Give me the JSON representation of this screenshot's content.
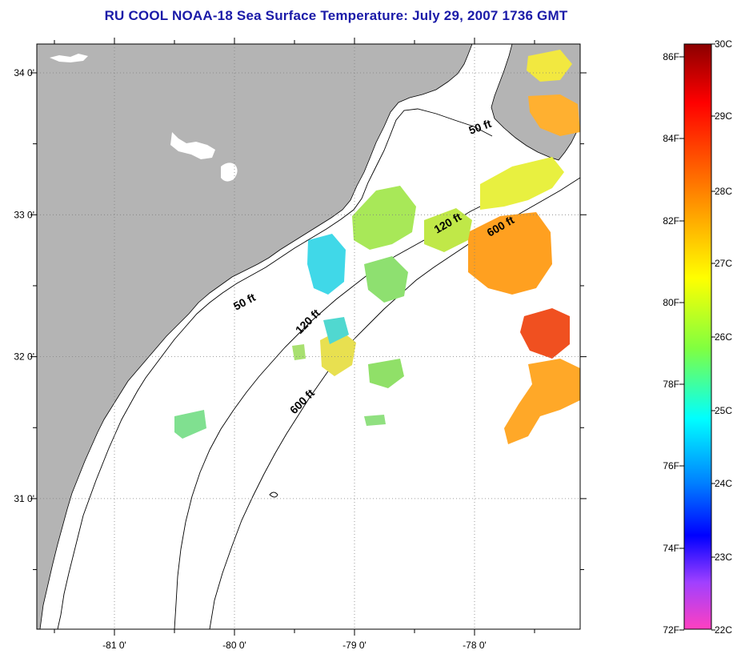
{
  "title": "RU COOL  NOAA-18  Sea Surface Temperature:  July 29, 2007 1736 GMT",
  "colors": {
    "land": "#b4b4b4",
    "ocean": "#ffffff",
    "coast": "#000000",
    "title": "#1a1aa8"
  },
  "map": {
    "lon_labels": [
      {
        "lon": -81,
        "text": "-81 0'"
      },
      {
        "lon": -80,
        "text": "-80 0'"
      },
      {
        "lon": -79,
        "text": "-79 0'"
      },
      {
        "lon": -78,
        "text": "-78 0'"
      }
    ],
    "lat_labels": [
      {
        "lat": 34,
        "text": "34 0'"
      },
      {
        "lat": 33,
        "text": "33 0'"
      },
      {
        "lat": 32,
        "text": "32 0'"
      },
      {
        "lat": 31,
        "text": "31 0'"
      }
    ],
    "contour_labels": [
      {
        "id": "50ft-north",
        "text": "50 ft"
      },
      {
        "id": "120ft-north",
        "text": "120 ft"
      },
      {
        "id": "600ft-north",
        "text": "600 ft"
      },
      {
        "id": "50ft-south",
        "text": "50 ft"
      },
      {
        "id": "120ft-south",
        "text": "120 ft"
      },
      {
        "id": "600ft-south",
        "text": "600 ft"
      }
    ]
  },
  "colorbar": {
    "fahrenheit_labels": [
      "86F",
      "84F",
      "82F",
      "80F",
      "78F",
      "76F",
      "74F",
      "72F"
    ],
    "celsius_labels": [
      "30C",
      "29C",
      "28C",
      "27C",
      "26C",
      "25C",
      "24C",
      "23C",
      "22C"
    ],
    "stops": [
      {
        "offset": 0.0,
        "color": "#8b0000"
      },
      {
        "offset": 0.1,
        "color": "#ff0000"
      },
      {
        "offset": 0.25,
        "color": "#ff8000"
      },
      {
        "offset": 0.4,
        "color": "#ffff00"
      },
      {
        "offset": 0.52,
        "color": "#80ff40"
      },
      {
        "offset": 0.64,
        "color": "#00ffff"
      },
      {
        "offset": 0.75,
        "color": "#0080ff"
      },
      {
        "offset": 0.84,
        "color": "#0000ff"
      },
      {
        "offset": 0.92,
        "color": "#a040ff"
      },
      {
        "offset": 1.0,
        "color": "#ff40c0"
      }
    ]
  }
}
